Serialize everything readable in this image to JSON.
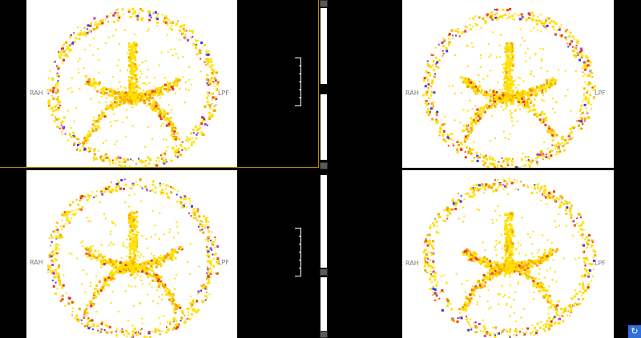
{
  "viewports": [
    {
      "id": "top-left",
      "left_label": "RAH",
      "right_label": "LPF",
      "active": true
    },
    {
      "id": "top-right",
      "left_label": "RAH",
      "right_label": "LPF",
      "active": false
    },
    {
      "id": "bottom-left",
      "left_label": "RAH",
      "right_label": "LPF",
      "active": false
    },
    {
      "id": "bottom-right",
      "left_label": "RAH",
      "right_label": "LPF",
      "active": false
    }
  ],
  "colors": {
    "background": "#000000",
    "slice_bg": "#ffffff",
    "overlay_low": "#ffe000",
    "overlay_mid": "#f5a800",
    "overlay_high": "#e83a1a",
    "overlay_neg": "#3a3af0",
    "overlay_neg2": "#c040c0",
    "active_border": "#b8860b",
    "corner_icon_bg": "#2f6fd6"
  },
  "icons": {
    "corner": "refresh-icon"
  }
}
